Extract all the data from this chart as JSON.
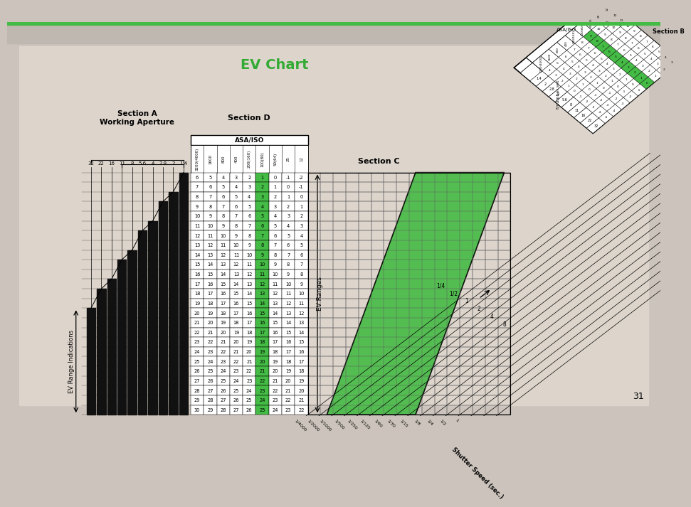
{
  "title": "EV Chart",
  "title_color": "#33aa33",
  "bg_color": "#ccc4bc",
  "page_color": "#ddd5cc",
  "page_num": "31",
  "green_bar_color": "#44bb44",
  "top_band_color": "#bfb8b0",
  "section_a_label": "Section A\nWorking Aperture",
  "section_b_label": "Section B",
  "section_c_label": "Section C",
  "section_d_label": "Section D",
  "ev_ranges_label": "EV Ranges",
  "ev_range_indications_label": "EV Range Indications",
  "aperture_values": [
    "32",
    "22",
    "16",
    "11",
    "8",
    "5.6",
    "4",
    "2.8",
    "2",
    "1.4"
  ],
  "asa_iso_cols": [
    "3200(4000)",
    "1600",
    "800",
    "400",
    "200(160)",
    "100(80)",
    "50(64)",
    "25",
    "12"
  ],
  "ev_table": [
    [
      6,
      5,
      4,
      3,
      2,
      1,
      0,
      -1,
      -2
    ],
    [
      7,
      6,
      5,
      4,
      3,
      2,
      1,
      0,
      -1
    ],
    [
      8,
      7,
      6,
      5,
      4,
      3,
      2,
      1,
      0
    ],
    [
      9,
      8,
      7,
      6,
      5,
      4,
      3,
      2,
      1
    ],
    [
      10,
      9,
      8,
      7,
      6,
      5,
      4,
      3,
      2
    ],
    [
      11,
      10,
      9,
      8,
      7,
      6,
      5,
      4,
      3
    ],
    [
      12,
      11,
      10,
      9,
      8,
      7,
      6,
      5,
      4
    ],
    [
      13,
      12,
      11,
      10,
      9,
      8,
      7,
      6,
      5
    ],
    [
      14,
      13,
      12,
      11,
      10,
      9,
      8,
      7,
      6
    ],
    [
      15,
      14,
      13,
      12,
      11,
      10,
      9,
      8,
      7
    ],
    [
      16,
      15,
      14,
      13,
      12,
      11,
      10,
      9,
      8
    ],
    [
      17,
      16,
      15,
      14,
      13,
      12,
      11,
      10,
      9
    ],
    [
      18,
      17,
      16,
      15,
      14,
      13,
      12,
      11,
      10
    ],
    [
      19,
      18,
      17,
      16,
      15,
      14,
      13,
      12,
      11
    ],
    [
      20,
      19,
      18,
      17,
      16,
      15,
      14,
      13,
      12
    ],
    [
      21,
      20,
      19,
      18,
      17,
      16,
      15,
      14,
      13
    ],
    [
      22,
      21,
      20,
      19,
      18,
      17,
      16,
      15,
      14
    ],
    [
      23,
      22,
      21,
      20,
      19,
      18,
      17,
      16,
      15
    ],
    [
      24,
      23,
      22,
      21,
      20,
      19,
      18,
      17,
      16
    ],
    [
      25,
      24,
      23,
      22,
      21,
      20,
      19,
      18,
      17
    ],
    [
      26,
      25,
      24,
      23,
      22,
      21,
      20,
      19,
      18
    ],
    [
      27,
      26,
      25,
      24,
      23,
      22,
      21,
      20,
      19
    ],
    [
      28,
      27,
      26,
      25,
      24,
      23,
      22,
      21,
      20
    ],
    [
      29,
      28,
      27,
      26,
      25,
      24,
      23,
      22,
      21
    ],
    [
      30,
      29,
      28,
      27,
      26,
      25,
      24,
      23,
      22
    ]
  ],
  "shutter_speeds": [
    "1/4000",
    "1/2000",
    "1/1000",
    "1/500",
    "1/250",
    "1/125",
    "1/60",
    "1/30",
    "1/15",
    "1/8",
    "1/4",
    "1/2",
    "1",
    "2",
    "4",
    "8"
  ],
  "b_asa_cols": [
    "3200(4000)",
    "1600",
    "800",
    "400",
    "200(160)",
    "100(80)",
    "50(64)",
    "25",
    "12"
  ],
  "b_fnums": [
    "1.4",
    "2",
    "2.8",
    "4",
    "5.6",
    "8",
    "11",
    "16",
    "22",
    "32"
  ],
  "b_ev_vals": [
    [
      4,
      5,
      6,
      7,
      8,
      9,
      10,
      11,
      12
    ],
    [
      3,
      4,
      5,
      6,
      7,
      8,
      9,
      10,
      11
    ],
    [
      2,
      3,
      4,
      5,
      6,
      7,
      8,
      9,
      10
    ],
    [
      1,
      2,
      3,
      4,
      5,
      6,
      7,
      8,
      9
    ],
    [
      0,
      1,
      2,
      3,
      4,
      5,
      6,
      7,
      8
    ],
    [
      -1,
      0,
      1,
      2,
      3,
      4,
      5,
      6,
      7
    ],
    [
      -2,
      -1,
      0,
      1,
      2,
      3,
      4,
      5,
      6
    ],
    [
      -3,
      -2,
      -1,
      0,
      1,
      2,
      3,
      4,
      5
    ],
    [
      -4,
      -3,
      -2,
      -1,
      0,
      1,
      2,
      3,
      4
    ],
    [
      -5,
      -4,
      -3,
      -2,
      -1,
      0,
      1,
      2,
      3
    ]
  ],
  "green_col_idx": 5,
  "green_color": "#44bb44",
  "green_light": "#77cc77",
  "grid_color": "#666666",
  "black_bar_color": "#111111"
}
